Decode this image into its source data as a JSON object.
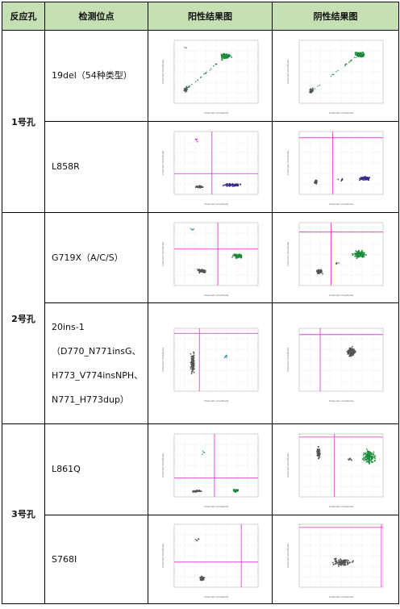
{
  "header": {
    "col1": "反应孔",
    "col2": "检测位点",
    "col3": "阳性结果图",
    "col4": "阴性结果图"
  },
  "holes": [
    "1号孔",
    "2号孔",
    "3号孔"
  ],
  "sites": {
    "s1": [
      "19del（54种类型）"
    ],
    "s2": [
      "L858R"
    ],
    "s3": [
      "G719X（A/C/S）"
    ],
    "s4": [
      "20ins-1",
      "（D770_N771insG、",
      "H773_V774insNPH、",
      "N771_H773dup）"
    ],
    "s5": [
      "L861Q"
    ],
    "s6": [
      "S768I"
    ]
  },
  "plot_text": {
    "ylabel": "Channel2 Amplitude",
    "xlabel": "Channel1 Amplitude"
  },
  "colors": {
    "header_bg": "#c6e0b4",
    "threshold": "#e02bd0",
    "pos_cluster": "#1a8a3a",
    "neg_cluster": "#555555",
    "purple_cluster": "#3b2a8a",
    "blue_cluster": "#4a8fbf"
  }
}
